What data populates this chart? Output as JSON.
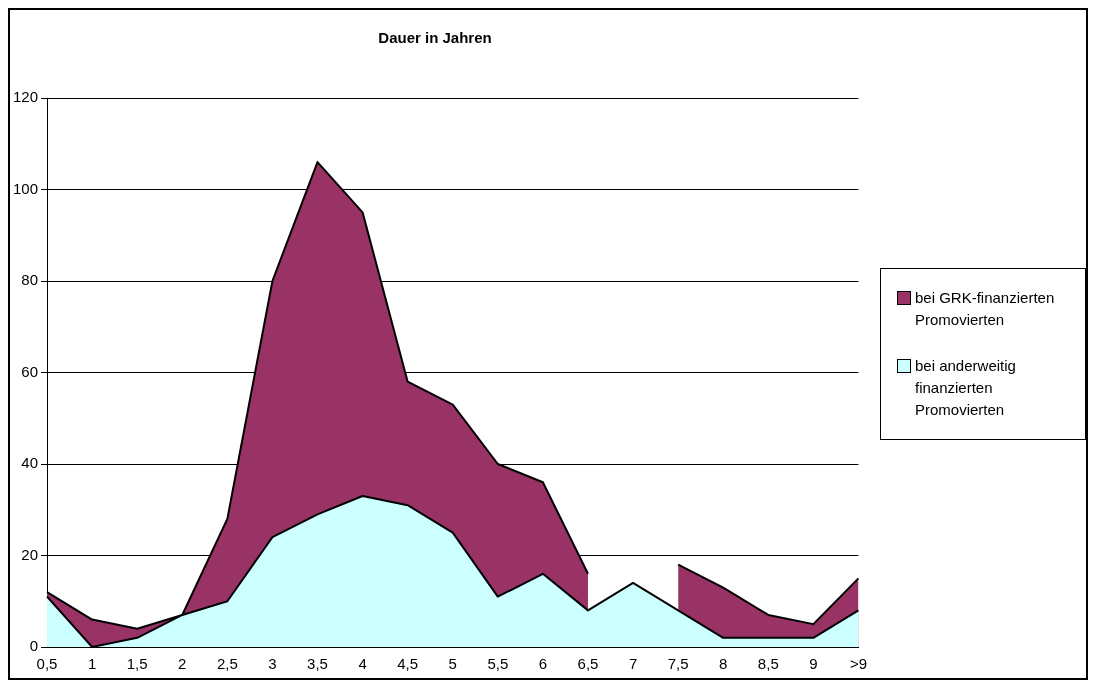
{
  "chart_data": {
    "type": "area",
    "title": "Dauer in Jahren",
    "categories": [
      "0,5",
      "1",
      "1,5",
      "2",
      "2,5",
      "3",
      "3,5",
      "4",
      "4,5",
      "5",
      "5,5",
      "6",
      "6,5",
      "7",
      "7,5",
      "8",
      "8,5",
      "9",
      ">9"
    ],
    "series": [
      {
        "name": "bei GRK-finanzierten Promovierten",
        "color": "#993366",
        "values": [
          12,
          6,
          4,
          7,
          28,
          80,
          106,
          95,
          58,
          53,
          40,
          36,
          16,
          null,
          18,
          13,
          7,
          5,
          15
        ]
      },
      {
        "name": "bei anderweitig finanzierten Promovierten",
        "color": "#ccffff",
        "values": [
          11,
          0,
          2,
          7,
          10,
          24,
          29,
          33,
          31,
          25,
          11,
          16,
          8,
          14,
          8,
          2,
          2,
          2,
          8
        ]
      }
    ],
    "ylim": [
      0,
      120
    ],
    "yticks": [
      0,
      20,
      40,
      60,
      80,
      100,
      120
    ],
    "grid": "y",
    "legend": "right"
  }
}
